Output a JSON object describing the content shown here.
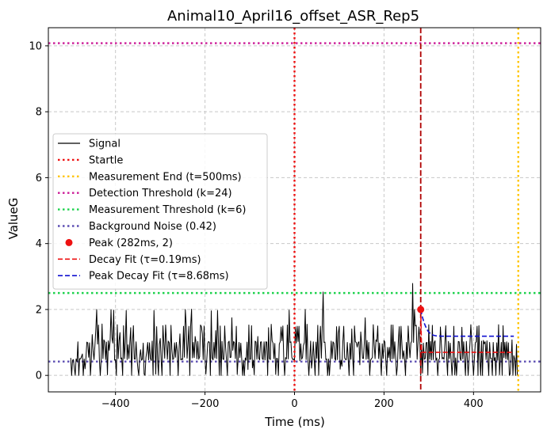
{
  "chart_data": {
    "type": "line",
    "title": "Animal10_April16_offset_ASR_Rep5",
    "xlabel": "Time (ms)",
    "ylabel": "ValueG",
    "xlim": [
      -550,
      550
    ],
    "ylim": [
      -0.5,
      10.55
    ],
    "xticks": [
      -400,
      -200,
      0,
      200,
      400
    ],
    "xtick_labels": [
      "−400",
      "−200",
      "0",
      "200",
      "400"
    ],
    "yticks": [
      0,
      2,
      4,
      6,
      8,
      10
    ],
    "ytick_labels": [
      "0",
      "2",
      "4",
      "6",
      "8",
      "10"
    ],
    "grid": true,
    "legend_position": "center-left",
    "signal": {
      "x_start": -500,
      "x_step": 2,
      "values": [
        0.53,
        0.0,
        0.46,
        0.48,
        0.23,
        0.0,
        0.5,
        0.42,
        1.02,
        0.0,
        0.51,
        0.5,
        0.57,
        0.65,
        0.0,
        0.5,
        0.2,
        0.53,
        1.01,
        0.99,
        0.55,
        0.99,
        0.0,
        0.49,
        1.24,
        0.75,
        0.48,
        0.9,
        1.38,
        2.0,
        0.95,
        1.53,
        0.49,
        0.0,
        0.5,
        1.56,
        0.51,
        1.08,
        1.02,
        0.48,
        1.01,
        0.02,
        1.05,
        0.76,
        1.05,
        1.99,
        1.15,
        0.98,
        1.98,
        0.46,
        0.48,
        0.0,
        1.54,
        0.51,
        1.05,
        1.3,
        0.5,
        0.53,
        0.0,
        1.51,
        0.51,
        1.0,
        1.97,
        0.48,
        0.93,
        0.51,
        0.98,
        1.45,
        0.0,
        0.98,
        1.51,
        0.5,
        0.49,
        1.02,
        0.52,
        0.21,
        0.0,
        0.54,
        0.78,
        0.46,
        0.49,
        0.98,
        0.04,
        0.0,
        0.54,
        0.74,
        1.0,
        0.47,
        0.99,
        0.51,
        0.45,
        1.04,
        0.0,
        1.97,
        1.01,
        0.04,
        1.48,
        0.5,
        0.0,
        0.95,
        1.12,
        0.47,
        0.0,
        1.51,
        1.0,
        0.52,
        1.53,
        1.03,
        0.49,
        1.04,
        0.99,
        0.0,
        1.52,
        0.8,
        0.48,
        0.51,
        0.99,
        0.55,
        1.0,
        0.74,
        0.0,
        0.81,
        1.26,
        0.47,
        0.5,
        0.48,
        1.49,
        0.55,
        2.0,
        1.53,
        0.52,
        0.98,
        1.49,
        0.0,
        1.51,
        2.01,
        0.53,
        1.0,
        0.54,
        1.18,
        1.0,
        0.5,
        1.03,
        0.49,
        0.57,
        1.53,
        1.48,
        1.26,
        0.48,
        1.5,
        0.51,
        0.04,
        0.49,
        0.97,
        1.03,
        1.0,
        0.0,
        1.96,
        0.53,
        0.47,
        1.0,
        0.53,
        1.36,
        0.51,
        1.97,
        1.0,
        0.0,
        1.5,
        0.0,
        1.03,
        0.5,
        0.48,
        1.5,
        0.86,
        0.47,
        0.0,
        1.0,
        1.04,
        0.54,
        0.55,
        1.75,
        0.76,
        1.03,
        0.99,
        0.51,
        1.49,
        0.03,
        0.49,
        1.0,
        0.54,
        0.98,
        0.52,
        0.0,
        0.46,
        0.0,
        0.53,
        0.46,
        1.01,
        0.18,
        1.53,
        0.48,
        0.5,
        1.51,
        0.23,
        0.46,
        0.02,
        1.04,
        1.01,
        0.49,
        1.18,
        0.53,
        0.47,
        1.01,
        1.02,
        0.51,
        0.48,
        1.02,
        0.47,
        1.02,
        1.01,
        0.0,
        1.45,
        0.51,
        0.48,
        1.55,
        1.05,
        0.98,
        0.51,
        0.97,
        0.03,
        0.52,
        0.51,
        0.0,
        0.95,
        1.02,
        1.47,
        1.05,
        1.5,
        0.49,
        0.0,
        0.54,
        0.5,
        1.53,
        0.5,
        1.98,
        1.0,
        1.02,
        0.55,
        0.48,
        0.5,
        0.45,
        1.47,
        0.98,
        1.49,
        1.03,
        1.49,
        0.44,
        0.96,
        0.49,
        0.55,
        0.91,
        1.0,
        2.0,
        0.48,
        1.55,
        0.54,
        0.0,
        0.5,
        1.04,
        0.22,
        0.47,
        1.02,
        0.49,
        0.0,
        1.01,
        0.52,
        1.52,
        0.0,
        0.95,
        1.49,
        0.52,
        1.48,
        2.53,
        1.0,
        1.01,
        0.48,
        0.5,
        0.0,
        0.5,
        0.0,
        0.46,
        1.04,
        0.51,
        1.02,
        0.98,
        0.51,
        0.46,
        1.48,
        0.48,
        1.29,
        1.49,
        0.19,
        0.46,
        0.28,
        1.01,
        1.49,
        0.53,
        0.48,
        0.48,
        1.0,
        0.49,
        0.0,
        0.97,
        0.49,
        1.41,
        0.56,
        0.0,
        1.5,
        1.02,
        1.0,
        0.86,
        0.99,
        1.02,
        0.32,
        1.32,
        0.96,
        0.52,
        0.51,
        1.0,
        1.75,
        0.49,
        1.06,
        0.5,
        1.0,
        0.0,
        0.46,
        0.51,
        0.54,
        1.54,
        0.94,
        0.51,
        1.08,
        1.03,
        1.5,
        0.51,
        0.98,
        0.53,
        0.0,
        0.96,
        0.51,
        1.06,
        1.01,
        0.45,
        0.0,
        0.85,
        0.54,
        0.85,
        0.43,
        1.53,
        0.5,
        1.53,
        0.51,
        1.02,
        0.55,
        0.0,
        0.3,
        1.03,
        1.48,
        0.5,
        1.49,
        0.96,
        0.5,
        0.75,
        0.47,
        0.0,
        1.0,
        0.5,
        1.5,
        0.97,
        0.54,
        0.98,
        1.04,
        2.79,
        1.0,
        2.0,
        1.5,
        1.52,
        0.49,
        1.0,
        1.47,
        1.05,
        0.0,
        0.95,
        0.07,
        0.98,
        0.49,
        0.51,
        0.99,
        1.0,
        0.01,
        1.54,
        0.49,
        1.03,
        0.47,
        1.52,
        0.48,
        0.99,
        1.05,
        0.46,
        0.53,
        0.0,
        0.47,
        0.51,
        1.47,
        0.97,
        0.5,
        0.54,
        0.49,
        0.98,
        1.51,
        0.53,
        0.0,
        1.03,
        0.51,
        0.98,
        0.46,
        0.0,
        0.51,
        1.49,
        0.02,
        0.53,
        0.0,
        0.5,
        1.03,
        1.02,
        0.52,
        0.45,
        1.46,
        0.5,
        1.02,
        0.48,
        0.0,
        1.03,
        0.54,
        0.0,
        0.49,
        0.98,
        1.54,
        1.02,
        0.47,
        0.0,
        0.51,
        0.99,
        1.02,
        1.49,
        0.0,
        1.51,
        0.5,
        0.0,
        1.04,
        0.0,
        1.06,
        0.96,
        1.02,
        0.48,
        1.05,
        0.51,
        0.0,
        1.0,
        0.52,
        0.52,
        0.0,
        1.0,
        0.45,
        0.54,
        0.0,
        0.99,
        0.46,
        1.54,
        0.02,
        0.52,
        1.0,
        0.0,
        1.51,
        0.54,
        1.0,
        0.5,
        1.02,
        0.48,
        0.99,
        0.0,
        0.05,
        0.5,
        1.08,
        0.0,
        0.6,
        0.5,
        0.0,
        0.94,
        0.0
      ]
    },
    "startle": {
      "x": 0,
      "color": "#ee1111"
    },
    "measurement_end": {
      "x": 500,
      "color": "#ffc400"
    },
    "detection_threshold": {
      "y": 10.08,
      "color": "#cc1c97"
    },
    "measurement_threshold": {
      "y": 2.5,
      "color": "#1cd24c"
    },
    "background_noise": {
      "y": 0.42,
      "color": "#5d4fb3"
    },
    "peak": {
      "x": 282,
      "y": 2,
      "color": "#ee1111"
    },
    "peak_line": {
      "x": 282,
      "color": "#b00000"
    },
    "decay_fit": {
      "color": "#ee1111",
      "x": [
        282,
        284,
        286,
        490
      ],
      "y": [
        2.0,
        0.7,
        0.7,
        0.7
      ]
    },
    "peak_decay_fit": {
      "color": "#1010d0",
      "x": [
        282,
        286,
        290,
        294,
        298,
        302,
        306,
        310,
        316,
        330,
        360,
        400,
        450,
        490
      ],
      "y": [
        2.0,
        1.76,
        1.58,
        1.45,
        1.35,
        1.29,
        1.25,
        1.22,
        1.2,
        1.19,
        1.19,
        1.19,
        1.19,
        1.19
      ]
    },
    "legend": [
      {
        "label": "Signal",
        "kind": "line",
        "color": "#000000",
        "dash": "none"
      },
      {
        "label": "Startle",
        "kind": "line",
        "color": "#ee1111",
        "dash": "dotted"
      },
      {
        "label": "Measurement End (t=500ms)",
        "kind": "line",
        "color": "#ffc400",
        "dash": "dotted"
      },
      {
        "label": "Detection Threshold (k=24)",
        "kind": "line",
        "color": "#cc1c97",
        "dash": "dotted"
      },
      {
        "label": "Measurement Threshold (k=6)",
        "kind": "line",
        "color": "#1cd24c",
        "dash": "dotted"
      },
      {
        "label": "Background Noise (0.42)",
        "kind": "line",
        "color": "#5d4fb3",
        "dash": "dotted"
      },
      {
        "label": "Peak (282ms, 2)",
        "kind": "marker",
        "color": "#ee1111",
        "dash": "none"
      },
      {
        "label": "Decay Fit (τ=0.19ms)",
        "kind": "line",
        "color": "#ee1111",
        "dash": "dashed"
      },
      {
        "label": "Peak Decay Fit (τ=8.68ms)",
        "kind": "line",
        "color": "#1010d0",
        "dash": "dashed"
      }
    ]
  }
}
